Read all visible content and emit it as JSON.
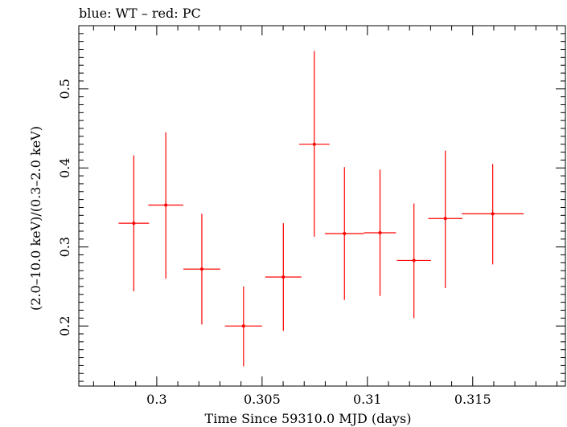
{
  "header": {
    "title": "blue: WT – red: PC"
  },
  "chart_data": {
    "type": "scatter",
    "title": "blue: WT – red: PC",
    "xlabel": "Time Since 59310.0 MJD (days)",
    "ylabel": "(2.0–10.0 keV)/(0.3–2.0 keV)",
    "xlim": [
      0.2963,
      0.3194
    ],
    "ylim": [
      0.124,
      0.58
    ],
    "x_ticks": [
      {
        "value": 0.3,
        "label": "0.3"
      },
      {
        "value": 0.305,
        "label": "0.305"
      },
      {
        "value": 0.31,
        "label": "0.31"
      },
      {
        "value": 0.315,
        "label": "0.315"
      }
    ],
    "y_ticks": [
      {
        "value": 0.2,
        "label": "0.2"
      },
      {
        "value": 0.3,
        "label": "0.3"
      },
      {
        "value": 0.4,
        "label": "0.4"
      },
      {
        "value": 0.5,
        "label": "0.5"
      }
    ],
    "grid": false,
    "series": [
      {
        "color": "#ff0000",
        "points": [
          {
            "x": 0.29891,
            "xerr": 0.00072,
            "y": 0.33,
            "ylo": 0.244,
            "yhi": 0.416
          },
          {
            "x": 0.30043,
            "xerr": 0.00083,
            "y": 0.353,
            "ylo": 0.26,
            "yhi": 0.445
          },
          {
            "x": 0.30214,
            "xerr": 0.00088,
            "y": 0.272,
            "ylo": 0.202,
            "yhi": 0.342
          },
          {
            "x": 0.30412,
            "xerr": 0.00088,
            "y": 0.2,
            "ylo": 0.149,
            "yhi": 0.25
          },
          {
            "x": 0.30601,
            "xerr": 0.00086,
            "y": 0.262,
            "ylo": 0.194,
            "yhi": 0.33
          },
          {
            "x": 0.30748,
            "xerr": 0.00072,
            "y": 0.43,
            "ylo": 0.313,
            "yhi": 0.548
          },
          {
            "x": 0.30891,
            "xerr": 0.00093,
            "y": 0.317,
            "ylo": 0.233,
            "yhi": 0.401
          },
          {
            "x": 0.3106,
            "xerr": 0.00076,
            "y": 0.318,
            "ylo": 0.238,
            "yhi": 0.398
          },
          {
            "x": 0.31221,
            "xerr": 0.00081,
            "y": 0.283,
            "ylo": 0.21,
            "yhi": 0.355
          },
          {
            "x": 0.3137,
            "xerr": 0.00081,
            "y": 0.336,
            "ylo": 0.248,
            "yhi": 0.422
          },
          {
            "x": 0.31595,
            "xerr": 0.00147,
            "y": 0.342,
            "ylo": 0.278,
            "yhi": 0.405
          }
        ]
      }
    ]
  }
}
